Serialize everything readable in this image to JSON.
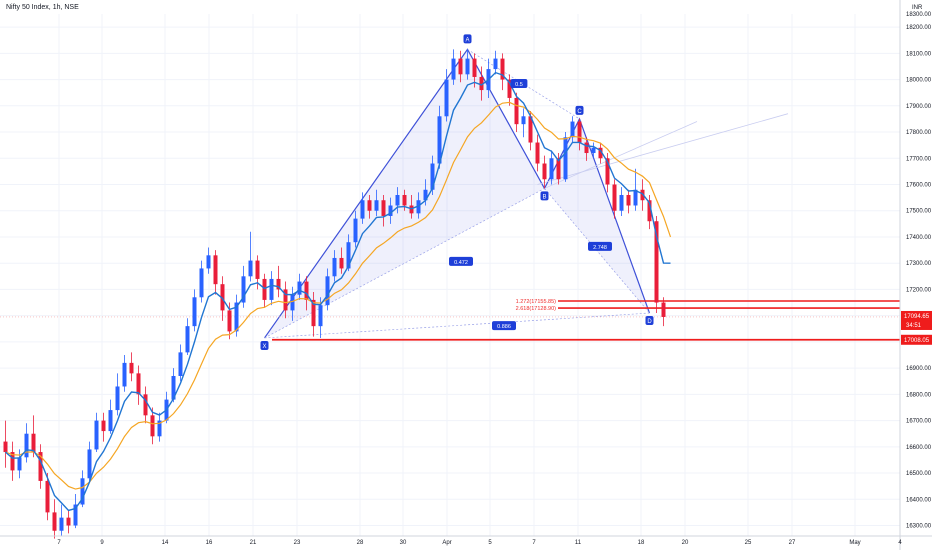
{
  "header": {
    "title": "Nifty 50 Index, 1h, NSE"
  },
  "chart_data": {
    "type": "candlestick",
    "currency": "INR",
    "x_ticks": [
      "7",
      "9",
      "14",
      "16",
      "21",
      "23",
      "28",
      "30",
      "Apr",
      "5",
      "7",
      "11",
      "18",
      "20",
      "25",
      "27",
      "May",
      "4"
    ],
    "y_ticks": [
      16300,
      16400,
      16500,
      16600,
      16700,
      16800,
      16900,
      17000,
      17100,
      17200,
      17300,
      17400,
      17500,
      17600,
      17700,
      17800,
      17900,
      18000,
      18100,
      18200
    ],
    "ylim": [
      16260,
      18250
    ],
    "price_labels": {
      "last_price": "17094.65",
      "countdown": "34:51",
      "support": "17008.05",
      "top_partial": "18300.00"
    },
    "harmonic_pattern": {
      "points": [
        {
          "label": "X",
          "index": 37,
          "price": 17015
        },
        {
          "label": "A",
          "index": 66,
          "price": 18115
        },
        {
          "label": "B",
          "index": 77,
          "price": 17585
        },
        {
          "label": "C",
          "index": 82,
          "price": 17850
        },
        {
          "label": "D",
          "index": 92,
          "price": 17110
        }
      ],
      "ratios": [
        {
          "label": "0.472",
          "price": 17305
        },
        {
          "label": "0.5",
          "price": 17983
        },
        {
          "label": "2.748",
          "price": 17362
        },
        {
          "label": "0.886",
          "price": 17060
        }
      ]
    },
    "fib_levels": [
      {
        "label": "1.272(17155.85)",
        "price": 17155.85
      },
      {
        "label": "2.618(17128.90)",
        "price": 17128.9
      }
    ],
    "horizontal_levels": [
      17008.05
    ],
    "candles": [
      [
        16620,
        16580,
        16700,
        16520
      ],
      [
        16580,
        16510,
        16620,
        16470
      ],
      [
        16510,
        16560,
        16590,
        16480
      ],
      [
        16560,
        16650,
        16690,
        16540
      ],
      [
        16650,
        16580,
        16720,
        16560
      ],
      [
        16580,
        16470,
        16610,
        16440
      ],
      [
        16470,
        16350,
        16500,
        16320
      ],
      [
        16350,
        16280,
        16400,
        16250
      ],
      [
        16280,
        16330,
        16380,
        16260
      ],
      [
        16330,
        16300,
        16360,
        16270
      ],
      [
        16300,
        16380,
        16420,
        16290
      ],
      [
        16380,
        16480,
        16510,
        16370
      ],
      [
        16480,
        16590,
        16620,
        16470
      ],
      [
        16590,
        16700,
        16730,
        16580
      ],
      [
        16700,
        16660,
        16730,
        16620
      ],
      [
        16660,
        16740,
        16780,
        16650
      ],
      [
        16740,
        16830,
        16880,
        16720
      ],
      [
        16830,
        16920,
        16950,
        16810
      ],
      [
        16920,
        16880,
        16960,
        16850
      ],
      [
        16880,
        16800,
        16910,
        16760
      ],
      [
        16800,
        16720,
        16830,
        16690
      ],
      [
        16720,
        16640,
        16750,
        16610
      ],
      [
        16640,
        16700,
        16730,
        16620
      ],
      [
        16700,
        16780,
        16810,
        16690
      ],
      [
        16780,
        16870,
        16900,
        16770
      ],
      [
        16870,
        16960,
        16990,
        16850
      ],
      [
        16960,
        17060,
        17090,
        16950
      ],
      [
        17060,
        17170,
        17200,
        17040
      ],
      [
        17170,
        17280,
        17310,
        17150
      ],
      [
        17280,
        17330,
        17360,
        17260
      ],
      [
        17330,
        17220,
        17350,
        17180
      ],
      [
        17220,
        17120,
        17250,
        17080
      ],
      [
        17120,
        17040,
        17150,
        17010
      ],
      [
        17040,
        17150,
        17180,
        17020
      ],
      [
        17150,
        17250,
        17290,
        17130
      ],
      [
        17250,
        17310,
        17420,
        17230
      ],
      [
        17310,
        17240,
        17330,
        17200
      ],
      [
        17240,
        17160,
        17260,
        17130
      ],
      [
        17160,
        17240,
        17270,
        17140
      ],
      [
        17240,
        17200,
        17290,
        17170
      ],
      [
        17200,
        17120,
        17230,
        17090
      ],
      [
        17120,
        17180,
        17210,
        17080
      ],
      [
        17180,
        17230,
        17260,
        17160
      ],
      [
        17230,
        17160,
        17250,
        17120
      ],
      [
        17160,
        17060,
        17190,
        17020
      ],
      [
        17060,
        17140,
        17170,
        17015
      ],
      [
        17140,
        17250,
        17280,
        17120
      ],
      [
        17250,
        17320,
        17350,
        17230
      ],
      [
        17320,
        17280,
        17360,
        17260
      ],
      [
        17280,
        17380,
        17410,
        17270
      ],
      [
        17380,
        17470,
        17500,
        17360
      ],
      [
        17470,
        17540,
        17570,
        17450
      ],
      [
        17540,
        17500,
        17560,
        17470
      ],
      [
        17500,
        17540,
        17580,
        17480
      ],
      [
        17540,
        17480,
        17560,
        17440
      ],
      [
        17480,
        17520,
        17550,
        17450
      ],
      [
        17520,
        17560,
        17590,
        17490
      ],
      [
        17560,
        17520,
        17580,
        17500
      ],
      [
        17520,
        17490,
        17560,
        17470
      ],
      [
        17490,
        17540,
        17570,
        17470
      ],
      [
        17540,
        17580,
        17620,
        17520
      ],
      [
        17580,
        17680,
        17710,
        17560
      ],
      [
        17680,
        17860,
        17900,
        17660
      ],
      [
        17860,
        18000,
        18040,
        17840
      ],
      [
        18000,
        18080,
        18115,
        17980
      ],
      [
        18080,
        18020,
        18110,
        17990
      ],
      [
        18020,
        18080,
        18115,
        18000
      ],
      [
        18080,
        18010,
        18100,
        17970
      ],
      [
        18010,
        17960,
        18050,
        17920
      ],
      [
        17960,
        18040,
        18080,
        17930
      ],
      [
        18040,
        18080,
        18110,
        18020
      ],
      [
        18080,
        18000,
        18100,
        17960
      ],
      [
        18000,
        17930,
        18020,
        17900
      ],
      [
        17930,
        17830,
        17950,
        17800
      ],
      [
        17830,
        17860,
        17890,
        17780
      ],
      [
        17860,
        17760,
        17880,
        17730
      ],
      [
        17760,
        17680,
        17790,
        17650
      ],
      [
        17680,
        17620,
        17710,
        17585
      ],
      [
        17620,
        17700,
        17730,
        17600
      ],
      [
        17700,
        17620,
        17720,
        17600
      ],
      [
        17620,
        17780,
        17800,
        17610
      ],
      [
        17780,
        17840,
        17860,
        17760
      ],
      [
        17840,
        17760,
        17850,
        17730
      ],
      [
        17760,
        17720,
        17780,
        17690
      ],
      [
        17720,
        17740,
        17760,
        17700
      ],
      [
        17740,
        17700,
        17760,
        17680
      ],
      [
        17700,
        17600,
        17720,
        17570
      ],
      [
        17600,
        17500,
        17620,
        17470
      ],
      [
        17500,
        17560,
        17590,
        17480
      ],
      [
        17560,
        17520,
        17580,
        17490
      ],
      [
        17520,
        17580,
        17660,
        17500
      ],
      [
        17580,
        17540,
        17620,
        17500
      ],
      [
        17540,
        17460,
        17560,
        17430
      ],
      [
        17460,
        17150,
        17480,
        17110
      ],
      [
        17150,
        17095,
        17170,
        17060
      ]
    ]
  }
}
